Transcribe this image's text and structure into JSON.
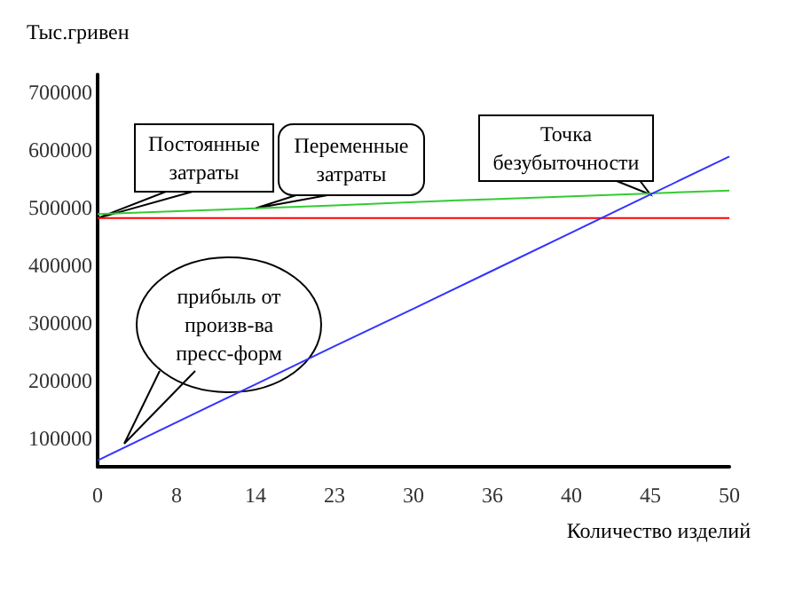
{
  "chart_data": {
    "type": "line",
    "ylabel": "Тыс.гривен",
    "xlabel": "Количество изделий",
    "categories": [
      "0",
      "8",
      "14",
      "23",
      "30",
      "36",
      "40",
      "45",
      "50"
    ],
    "ylim": [
      50000,
      730000
    ],
    "yticks": [
      100000,
      200000,
      300000,
      400000,
      500000,
      600000,
      700000
    ],
    "grid": false,
    "marker": "none",
    "line_style": "solid",
    "series": [
      {
        "color": "#ff0000",
        "values": [
          481000,
          481000,
          481000,
          481000,
          481000,
          481000,
          481000,
          481000,
          481000
        ]
      },
      {
        "color": "#33cc33",
        "values": [
          488000,
          493000,
          498000,
          503000,
          509000,
          514000,
          519000,
          524000,
          529000
        ]
      },
      {
        "color": "#3333ff",
        "values": [
          61000,
          127000,
          193000,
          259000,
          324000,
          390000,
          456000,
          522000,
          588000
        ]
      }
    ],
    "annotations": [
      {
        "text": "Постоянные\nзатраты",
        "x": "0",
        "y": 481000
      },
      {
        "text": "Переменные\nзатраты",
        "x": "14",
        "y": 498000
      },
      {
        "text": "Точка\nбезубыточности",
        "x": "45",
        "y": 522000
      },
      "прибыль от\nпроизв-ва\nпресс-форм"
    ]
  }
}
